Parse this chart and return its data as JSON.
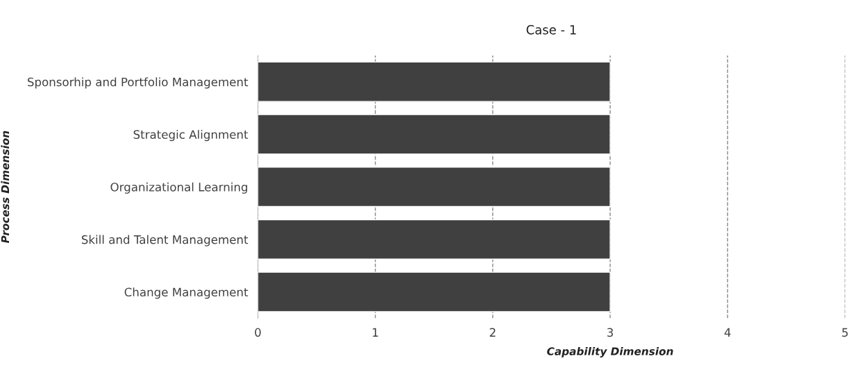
{
  "chart_data": {
    "type": "bar",
    "orientation": "horizontal",
    "title": "Case - 1",
    "xlabel": "Capability Dimension",
    "ylabel": "Process Dimension",
    "categories": [
      "Sponsorhip and Portfolio Management",
      "Strategic Alignment",
      "Organizational Learning",
      "Skill and Talent Management",
      "Change Management"
    ],
    "values": [
      3,
      3,
      3,
      3,
      3
    ],
    "color": "#404040",
    "xlim": [
      0,
      5
    ],
    "xticks": [
      0,
      1,
      2,
      3,
      4,
      5
    ],
    "grid": "x"
  }
}
